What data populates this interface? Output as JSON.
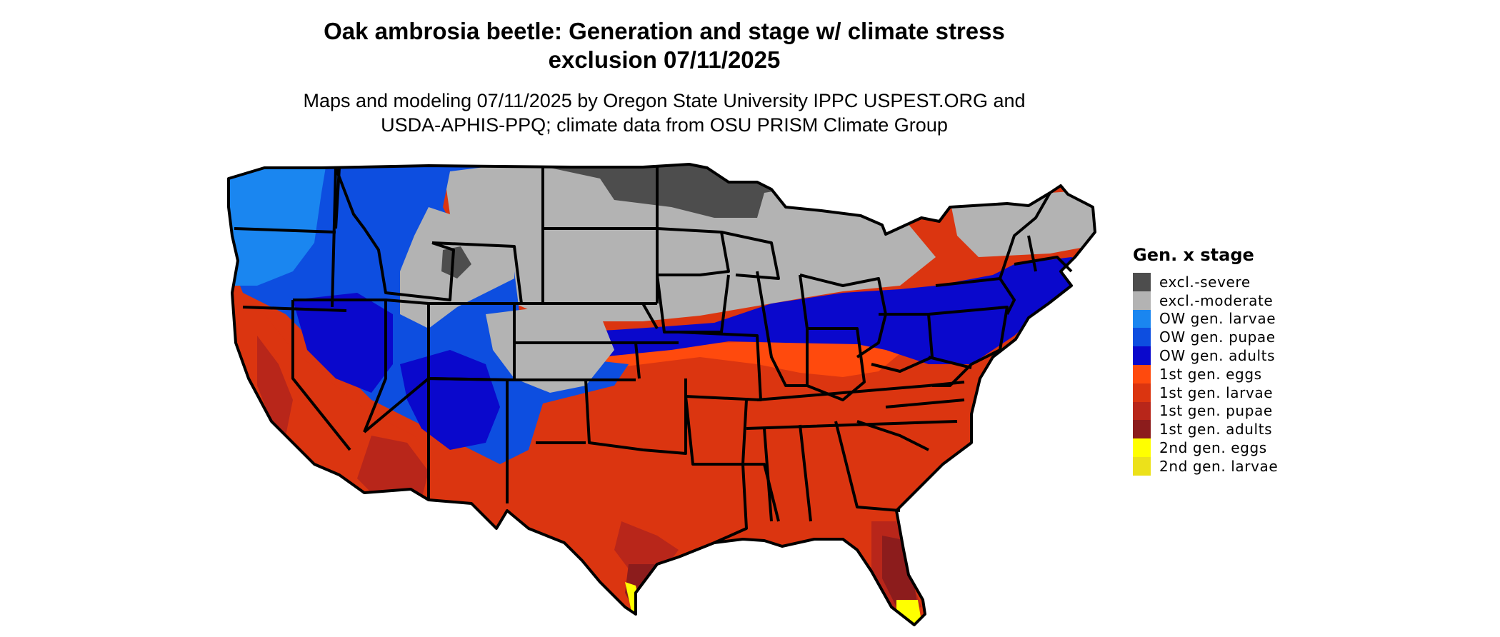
{
  "header": {
    "title_line1": "Oak ambrosia beetle: Generation and stage w/ climate stress",
    "title_line2": "exclusion 07/11/2025",
    "subtitle_line1": "Maps and modeling 07/11/2025 by Oregon State University IPPC USPEST.ORG and",
    "subtitle_line2": "USDA-APHIS-PPQ; climate data from OSU PRISM Climate Group"
  },
  "legend": {
    "title": "Gen. x stage",
    "items": [
      {
        "label": "excl.-severe",
        "color": "#4d4d4d"
      },
      {
        "label": "excl.-moderate",
        "color": "#b3b3b3"
      },
      {
        "label": "OW gen. larvae",
        "color": "#1a86f0"
      },
      {
        "label": "OW gen. pupae",
        "color": "#0d4ee0"
      },
      {
        "label": "OW gen. adults",
        "color": "#0a08cc"
      },
      {
        "label": "1st gen. eggs",
        "color": "#ff4a0d"
      },
      {
        "label": "1st gen. larvae",
        "color": "#db3510"
      },
      {
        "label": "1st gen. pupae",
        "color": "#b8261a"
      },
      {
        "label": "1st gen. adults",
        "color": "#8c1c1c"
      },
      {
        "label": "2nd gen. eggs",
        "color": "#ffff00"
      },
      {
        "label": "2nd gen. larvae",
        "color": "#ece11a"
      }
    ]
  }
}
